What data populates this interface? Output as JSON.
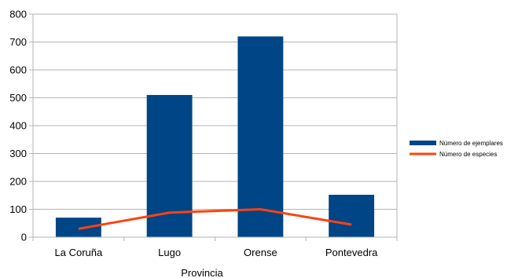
{
  "chart_data": {
    "type": "bar",
    "xlabel": "Provincia",
    "ylabel": "",
    "categories": [
      "La Coruña",
      "Lugo",
      "Orense",
      "Pontevedra"
    ],
    "ylim": [
      0,
      800
    ],
    "yticks": [
      0,
      100,
      200,
      300,
      400,
      500,
      600,
      700,
      800
    ],
    "grid": true,
    "legend_position": "right",
    "series": [
      {
        "name": "Número de ejemplares",
        "type": "bar",
        "color": "#004586",
        "values": [
          70,
          510,
          720,
          152
        ]
      },
      {
        "name": "Número de especies",
        "type": "line",
        "color": "#ff420e",
        "values": [
          30,
          88,
          100,
          45
        ]
      }
    ]
  }
}
